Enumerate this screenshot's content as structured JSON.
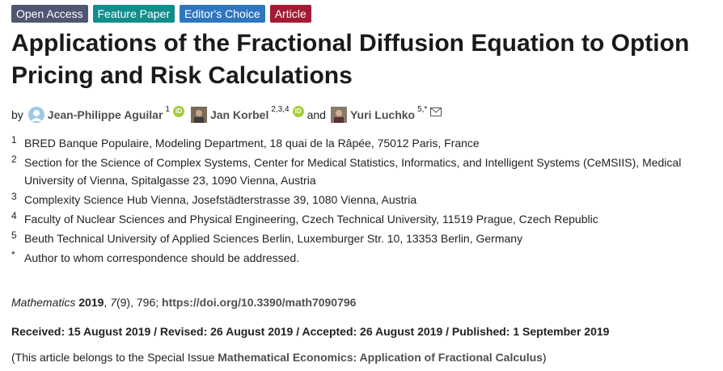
{
  "badges": {
    "open_access": "Open Access",
    "feature_paper": "Feature Paper",
    "editors_choice": "Editor's Choice",
    "article": "Article"
  },
  "title": "Applications of the Fractional Diffusion Equation to Option Pricing and Risk Calculations",
  "authors": {
    "by": "by",
    "and": "and",
    "list": [
      {
        "name": "Jean-Philippe Aguilar",
        "affil": "1",
        "orcid": true
      },
      {
        "name": "Jan Korbel",
        "affil": "2,3,4",
        "orcid": true
      },
      {
        "name": "Yuri Luchko",
        "affil": "5,*",
        "email": true
      }
    ]
  },
  "affiliations": [
    {
      "num": "1",
      "text": "BRED Banque Populaire, Modeling Department, 18 quai de la Râpée, 75012 Paris, France"
    },
    {
      "num": "2",
      "text": "Section for the Science of Complex Systems, Center for Medical Statistics, Informatics, and Intelligent Systems (CeMSIIS), Medical University of Vienna, Spitalgasse 23, 1090 Vienna, Austria"
    },
    {
      "num": "3",
      "text": "Complexity Science Hub Vienna, Josefstädterstrasse 39, 1080 Vienna, Austria"
    },
    {
      "num": "4",
      "text": "Faculty of Nuclear Sciences and Physical Engineering, Czech Technical University, 11519 Prague, Czech Republic"
    },
    {
      "num": "5",
      "text": "Beuth Technical University of Applied Sciences Berlin, Luxemburger Str. 10, 13353 Berlin, Germany"
    },
    {
      "num": "*",
      "text": "Author to whom correspondence should be addressed."
    }
  ],
  "citation": {
    "journal": "Mathematics",
    "year": "2019",
    "volume": "7",
    "issue_rest": "(9), 796;",
    "doi": "https://doi.org/10.3390/math7090796"
  },
  "dates": "Received: 15 August 2019 / Revised: 26 August 2019 / Accepted: 26 August 2019 / Published: 1 September 2019",
  "special_issue": {
    "prefix": "(This article belongs to the Special Issue",
    "name": "Mathematical Economics: Application of Fractional Calculus",
    "suffix": ")"
  }
}
